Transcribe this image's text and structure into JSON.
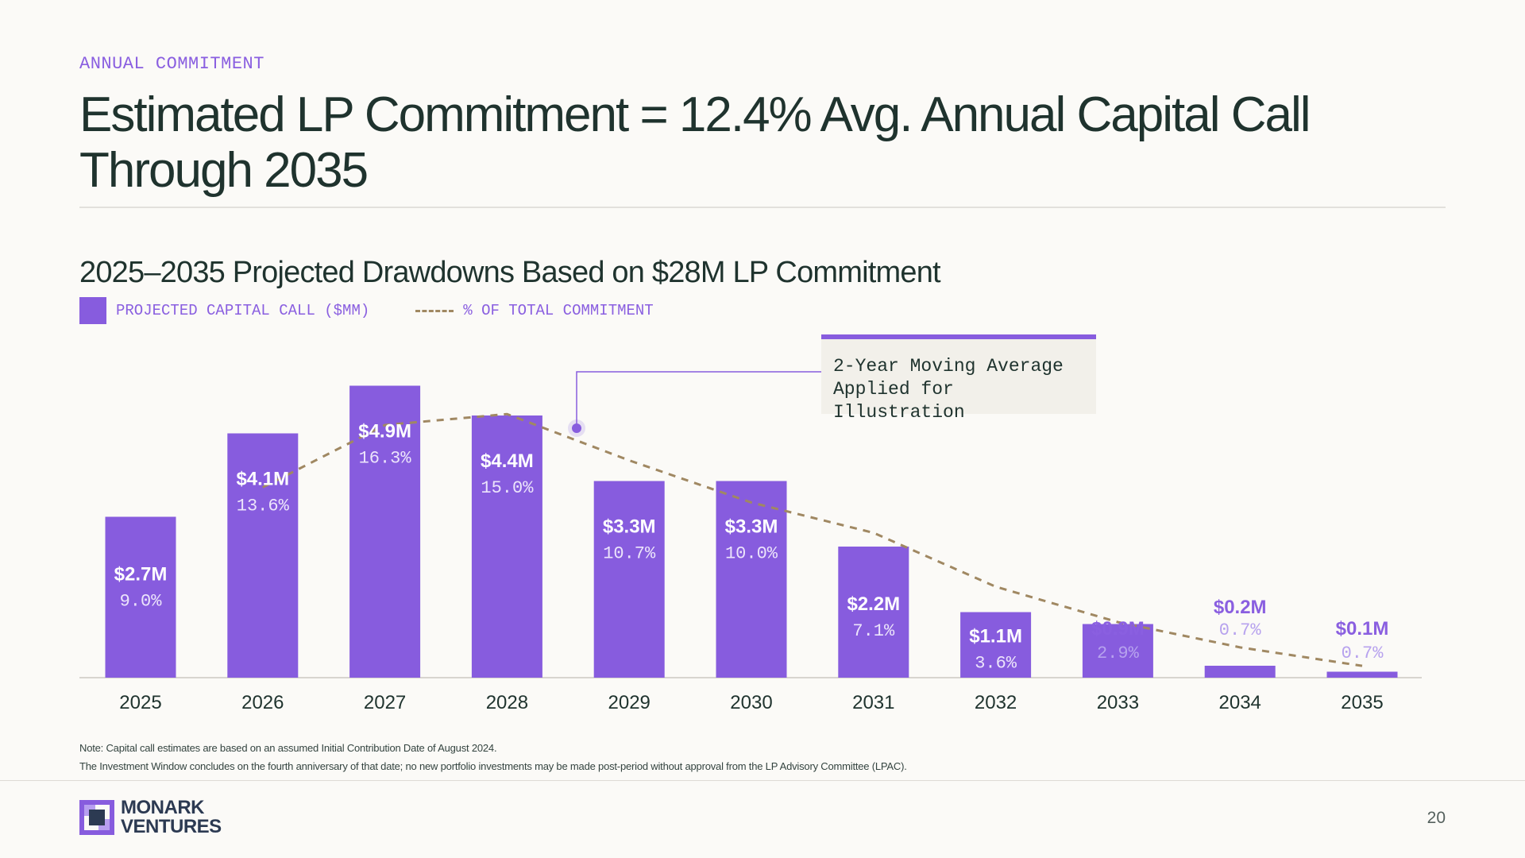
{
  "header": {
    "eyebrow": "ANNUAL COMMITMENT",
    "title": "Estimated LP Commitment = 12.4% Avg. Annual Capital Call Through 2035"
  },
  "chart_data": {
    "type": "bar",
    "title": "2025–2035 Projected Drawdowns Based on $28M LP Commitment",
    "categories": [
      "2025",
      "2026",
      "2027",
      "2028",
      "2029",
      "2030",
      "2031",
      "2032",
      "2033",
      "2034",
      "2035"
    ],
    "series": [
      {
        "name": "PROJECTED CAPITAL CALL ($MM)",
        "values": [
          2.7,
          4.1,
          4.9,
          4.4,
          3.3,
          3.3,
          2.2,
          1.1,
          0.9,
          0.2,
          0.1
        ],
        "labels": [
          "$2.7M",
          "$4.1M",
          "$4.9M",
          "$4.4M",
          "$3.3M",
          "$3.3M",
          "$2.2M",
          "$1.1M",
          "$0.9M",
          "$0.2M",
          "$0.1M"
        ],
        "color": "#875cde"
      },
      {
        "name": "% OF TOTAL COMMITMENT",
        "values": [
          9.0,
          13.6,
          16.3,
          15.0,
          10.7,
          10.0,
          7.1,
          3.6,
          2.9,
          0.7,
          0.7
        ],
        "labels": [
          "9.0%",
          "13.6%",
          "16.3%",
          "15.0%",
          "10.7%",
          "10.0%",
          "7.1%",
          "3.6%",
          "2.9%",
          "0.7%",
          "0.7%"
        ],
        "moving_average_line": [
          null,
          11.3,
          15.0,
          15.65,
          12.9,
          10.4,
          8.6,
          5.4,
          3.3,
          1.8,
          0.7
        ],
        "style": "dashed",
        "color": "#a08862"
      }
    ],
    "annotation": "2-Year Moving Average Applied for Illustration",
    "legend_position": "top-left",
    "grid": false
  },
  "notes": [
    "Note: Capital call estimates are based on an assumed Initial Contribution Date of August 2024.",
    "The Investment Window concludes on the fourth anniversary of that date; no new portfolio investments may be made post-period without approval from the LP Advisory Committee (LPAC)."
  ],
  "footer": {
    "logo_line1": "MONARK",
    "logo_line2": "VENTURES",
    "page_number": "20"
  },
  "colors": {
    "accent": "#875cde",
    "label_accent": "#8a5fe0",
    "dashed_line": "#a08862",
    "text_dark": "#1f332e",
    "background": "#fbfaf7"
  }
}
